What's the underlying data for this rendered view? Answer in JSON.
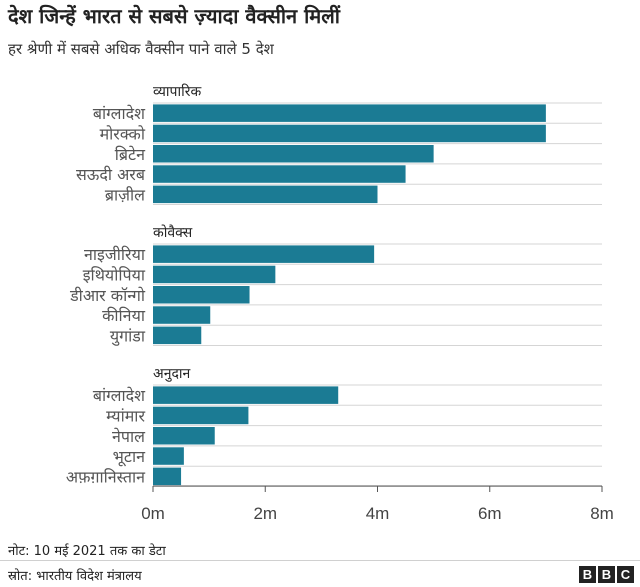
{
  "title": "देश जिन्हें भारत से सबसे ज़्यादा वैक्सीन मिलीं",
  "subtitle": "हर श्रेणी में सबसे अधिक वैक्सीन पाने वाले 5 देश",
  "note": "नोट: 10 मई 2021 तक का डेटा",
  "source": "स्रोत: भारतीय विदेश मंत्रालय",
  "logo": [
    "B",
    "B",
    "C"
  ],
  "colors": {
    "bar": "#1b7b94",
    "grid": "#d5d5d5",
    "axis": "#555555",
    "text": "#333333"
  },
  "chart_data": {
    "type": "bar",
    "orientation": "horizontal",
    "xlim": [
      0,
      8
    ],
    "x_ticks": [
      0,
      2,
      4,
      6,
      8
    ],
    "x_tick_labels": [
      "0m",
      "2m",
      "4m",
      "6m",
      "8m"
    ],
    "grid": true,
    "groups": [
      {
        "name": "व्यापारिक",
        "categories": [
          "बांग्लादेश",
          "मोरक्को",
          "ब्रिटेन",
          "सऊदी अरब",
          "ब्राज़ील"
        ],
        "values": [
          7,
          7,
          5,
          4.5,
          4
        ]
      },
      {
        "name": "कोवैक्स",
        "categories": [
          "नाइजीरिया",
          "इथियोपिया",
          "डीआर कॉन्गो",
          "कीनिया",
          "युगांडा"
        ],
        "values": [
          3.94,
          2.18,
          1.72,
          1.02,
          0.86
        ]
      },
      {
        "name": "अनुदान",
        "categories": [
          "बांग्लादेश",
          "म्यांमार",
          "नेपाल",
          "भूटान",
          "अफ़ग़ानिस्तान"
        ],
        "values": [
          3.3,
          1.7,
          1.1,
          0.55,
          0.5
        ]
      }
    ]
  }
}
